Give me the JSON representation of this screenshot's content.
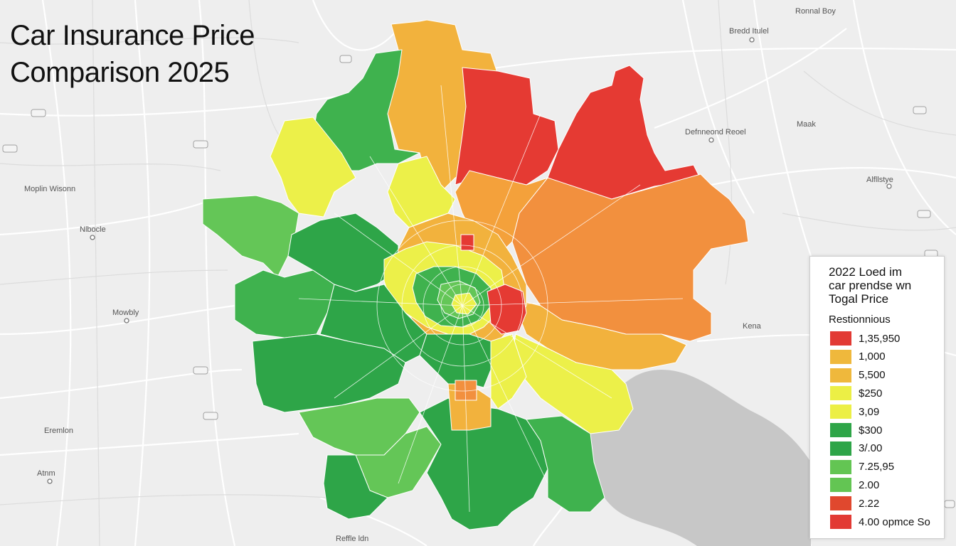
{
  "title": {
    "line1": "Car Insurance Price",
    "line2": "Comparison 2025"
  },
  "places": [
    "Ronnal Boy",
    "Bredd Itulel",
    "Defnneond Reoel",
    "Maak",
    "Alfllstye",
    "Moplin Wisonn",
    "Nlbocle",
    "Mowbly",
    "Kena",
    "Eremlon",
    "Atnm",
    "Reffle ldn"
  ],
  "legend": {
    "heading": [
      "2022 Loed im",
      "car prendse wn",
      "Togal Price"
    ],
    "subheading": "Restionnious",
    "items": [
      {
        "value": "1,35,950",
        "color": "#e23a34"
      },
      {
        "value": "1,000",
        "color": "#efb83c"
      },
      {
        "value": "5,500",
        "color": "#efb83c"
      },
      {
        "value": "$250",
        "color": "#ecef45"
      },
      {
        "value": "3,09",
        "color": "#ecef45"
      },
      {
        "value": "$300",
        "color": "#2ea548"
      },
      {
        "value": "3/.00",
        "color": "#2ea548"
      },
      {
        "value": "7.25,95",
        "color": "#63c553"
      },
      {
        "value": "2.00",
        "color": "#63c553"
      },
      {
        "value": "2.22",
        "color": "#e0482e"
      },
      {
        "value": "4.00 opmce So",
        "color": "#e23a34"
      }
    ]
  },
  "colors": {
    "red": "#e53a33",
    "orange": "#f2903e",
    "amber": "#f2b23d",
    "yellow": "#ecf049",
    "darkgreen": "#2ea548",
    "green": "#3fb24e",
    "lightgreen": "#64c657",
    "water": "#c7c7c7",
    "background": "#eeeeee"
  }
}
